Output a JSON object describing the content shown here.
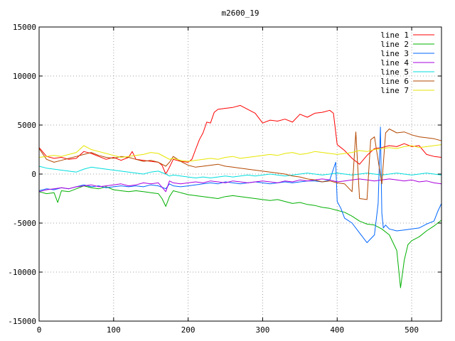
{
  "chart_data": {
    "type": "line",
    "title": "m2600_19",
    "xlabel": "",
    "ylabel": "",
    "xlim": [
      0,
      540
    ],
    "ylim": [
      -15000,
      15000
    ],
    "xticks": [
      0,
      100,
      200,
      300,
      400,
      500
    ],
    "yticks": [
      -15000,
      -10000,
      -5000,
      0,
      5000,
      10000,
      15000
    ],
    "grid": true,
    "legend_position": "top-right",
    "series": [
      {
        "name": "line 1",
        "color": "#ff0000",
        "x": [
          0,
          10,
          20,
          30,
          40,
          50,
          60,
          70,
          80,
          90,
          100,
          110,
          120,
          125,
          130,
          140,
          150,
          160,
          165,
          170,
          175,
          180,
          190,
          200,
          205,
          210,
          215,
          220,
          225,
          230,
          235,
          240,
          250,
          260,
          270,
          280,
          290,
          300,
          310,
          320,
          330,
          340,
          350,
          360,
          370,
          380,
          390,
          395,
          400,
          405,
          410,
          420,
          430,
          440,
          450,
          460,
          470,
          480,
          490,
          500,
          510,
          520,
          530,
          540
        ],
        "y": [
          2700,
          1800,
          1600,
          1700,
          1500,
          1600,
          2300,
          2100,
          1800,
          1500,
          1700,
          1400,
          1700,
          2300,
          1500,
          1400,
          1300,
          1200,
          900,
          0,
          700,
          1500,
          1300,
          1200,
          1500,
          2500,
          3500,
          4200,
          5300,
          5200,
          6300,
          6600,
          6700,
          6800,
          7000,
          6600,
          6200,
          5200,
          5500,
          5400,
          5600,
          5300,
          6100,
          5800,
          6200,
          6300,
          6500,
          6200,
          3000,
          2700,
          2400,
          1600,
          1000,
          1900,
          2600,
          2700,
          2900,
          2800,
          3100,
          2800,
          2900,
          2000,
          1800,
          1700
        ]
      },
      {
        "name": "line 2",
        "color": "#00b000",
        "x": [
          0,
          10,
          20,
          25,
          30,
          40,
          50,
          60,
          70,
          80,
          90,
          100,
          110,
          120,
          130,
          140,
          150,
          160,
          165,
          170,
          175,
          180,
          190,
          200,
          210,
          220,
          230,
          240,
          250,
          260,
          270,
          280,
          290,
          300,
          310,
          320,
          330,
          340,
          350,
          360,
          370,
          380,
          390,
          400,
          410,
          420,
          430,
          440,
          450,
          460,
          470,
          480,
          485,
          490,
          495,
          500,
          510,
          520,
          530,
          540
        ],
        "y": [
          -1800,
          -2000,
          -1900,
          -2900,
          -1700,
          -1800,
          -1500,
          -1200,
          -1400,
          -1500,
          -1300,
          -1600,
          -1700,
          -1800,
          -1700,
          -1800,
          -1900,
          -2000,
          -2500,
          -3300,
          -2300,
          -1700,
          -1900,
          -2100,
          -2200,
          -2300,
          -2400,
          -2500,
          -2300,
          -2200,
          -2300,
          -2400,
          -2500,
          -2600,
          -2700,
          -2600,
          -2800,
          -3000,
          -2900,
          -3100,
          -3200,
          -3400,
          -3500,
          -3700,
          -3900,
          -4300,
          -4800,
          -5100,
          -5200,
          -5600,
          -6200,
          -7800,
          -11600,
          -8800,
          -7200,
          -6800,
          -6400,
          -5800,
          -5300,
          -4700
        ]
      },
      {
        "name": "line 3",
        "color": "#0066ff",
        "x": [
          0,
          10,
          20,
          30,
          40,
          50,
          60,
          70,
          80,
          90,
          100,
          110,
          120,
          130,
          140,
          150,
          160,
          170,
          175,
          180,
          190,
          200,
          210,
          220,
          230,
          240,
          250,
          260,
          270,
          280,
          290,
          300,
          310,
          320,
          330,
          340,
          350,
          360,
          370,
          380,
          390,
          398,
          400,
          405,
          410,
          420,
          430,
          440,
          450,
          455,
          458,
          460,
          462,
          465,
          470,
          480,
          490,
          500,
          510,
          520,
          530,
          535,
          540
        ],
        "y": [
          -1700,
          -1500,
          -1600,
          -1400,
          -1500,
          -1300,
          -1100,
          -1300,
          -1200,
          -1400,
          -1300,
          -1200,
          -1300,
          -1200,
          -1300,
          -1100,
          -1200,
          -1500,
          -1000,
          -1200,
          -1300,
          -1200,
          -1100,
          -1000,
          -900,
          -1000,
          -800,
          -900,
          -1000,
          -900,
          -800,
          -900,
          -1000,
          -900,
          -800,
          -900,
          -800,
          -700,
          -700,
          -800,
          -600,
          1200,
          -2800,
          -3500,
          -4500,
          -5000,
          -6000,
          -7000,
          -6200,
          -3000,
          4800,
          -4000,
          -5500,
          -5200,
          -5600,
          -5800,
          -5700,
          -5600,
          -5500,
          -5100,
          -4800,
          -3800,
          -3000
        ]
      },
      {
        "name": "line 4",
        "color": "#aa00dd",
        "x": [
          0,
          10,
          20,
          30,
          40,
          50,
          60,
          70,
          80,
          90,
          100,
          110,
          120,
          130,
          140,
          150,
          160,
          170,
          175,
          180,
          190,
          200,
          210,
          220,
          230,
          240,
          250,
          260,
          270,
          280,
          290,
          300,
          310,
          320,
          330,
          340,
          350,
          360,
          370,
          380,
          390,
          400,
          410,
          420,
          430,
          440,
          450,
          460,
          470,
          480,
          490,
          500,
          510,
          520,
          530,
          540
        ],
        "y": [
          -1800,
          -1600,
          -1500,
          -1400,
          -1500,
          -1300,
          -1200,
          -1100,
          -1300,
          -1200,
          -1100,
          -1000,
          -1200,
          -1100,
          -900,
          -1000,
          -900,
          -1800,
          -700,
          -900,
          -1000,
          -900,
          -800,
          -900,
          -700,
          -800,
          -900,
          -700,
          -800,
          -900,
          -800,
          -700,
          -800,
          -900,
          -700,
          -800,
          -600,
          -700,
          -600,
          -500,
          -600,
          -800,
          -700,
          -600,
          -500,
          -600,
          -700,
          -600,
          -500,
          -600,
          -700,
          -600,
          -800,
          -700,
          -900,
          -1000
        ]
      },
      {
        "name": "line 5",
        "color": "#00dddd",
        "x": [
          0,
          10,
          20,
          30,
          40,
          50,
          60,
          70,
          80,
          90,
          100,
          110,
          120,
          130,
          140,
          150,
          160,
          170,
          175,
          180,
          190,
          200,
          210,
          220,
          230,
          240,
          250,
          260,
          270,
          280,
          290,
          300,
          310,
          320,
          330,
          340,
          350,
          360,
          370,
          380,
          390,
          400,
          410,
          420,
          430,
          440,
          450,
          460,
          470,
          480,
          490,
          500,
          510,
          520,
          530,
          540
        ],
        "y": [
          800,
          600,
          500,
          400,
          300,
          200,
          500,
          700,
          600,
          500,
          400,
          300,
          200,
          100,
          0,
          200,
          300,
          0,
          -200,
          -100,
          -200,
          -300,
          -400,
          -300,
          -400,
          -300,
          -200,
          -300,
          -200,
          -100,
          -200,
          -100,
          0,
          -100,
          -200,
          -100,
          0,
          100,
          0,
          -100,
          0,
          100,
          0,
          -100,
          0,
          100,
          0,
          -100,
          0,
          100,
          0,
          -100,
          0,
          100,
          0,
          -100
        ]
      },
      {
        "name": "line 6",
        "color": "#b34700",
        "x": [
          0,
          10,
          20,
          30,
          40,
          50,
          60,
          70,
          80,
          90,
          100,
          110,
          120,
          130,
          140,
          150,
          160,
          170,
          175,
          180,
          190,
          200,
          210,
          220,
          230,
          240,
          250,
          260,
          270,
          280,
          290,
          300,
          310,
          320,
          330,
          340,
          350,
          360,
          370,
          380,
          390,
          400,
          410,
          420,
          425,
          430,
          440,
          445,
          450,
          460,
          465,
          470,
          480,
          490,
          500,
          510,
          520,
          530,
          540
        ],
        "y": [
          2600,
          1500,
          1200,
          1400,
          1600,
          1800,
          2000,
          2200,
          1900,
          1700,
          1600,
          1800,
          1700,
          1500,
          1300,
          1400,
          1200,
          800,
          1200,
          1800,
          1300,
          900,
          700,
          800,
          900,
          1000,
          800,
          700,
          600,
          500,
          400,
          300,
          200,
          100,
          0,
          -200,
          -300,
          -500,
          -600,
          -800,
          -700,
          -900,
          -1000,
          -1800,
          4300,
          -2500,
          -2600,
          3500,
          3800,
          -1000,
          4200,
          4600,
          4200,
          4300,
          4000,
          3800,
          3700,
          3600,
          3400
        ]
      },
      {
        "name": "line 7",
        "color": "#e6e600",
        "x": [
          0,
          10,
          20,
          30,
          40,
          50,
          60,
          70,
          80,
          90,
          100,
          110,
          120,
          130,
          140,
          150,
          160,
          170,
          175,
          180,
          190,
          200,
          210,
          220,
          230,
          240,
          250,
          260,
          270,
          280,
          290,
          300,
          310,
          320,
          330,
          340,
          350,
          360,
          370,
          380,
          390,
          400,
          410,
          420,
          430,
          440,
          450,
          460,
          470,
          480,
          490,
          500,
          510,
          520,
          530,
          540
        ],
        "y": [
          1700,
          1800,
          1900,
          1800,
          2000,
          2200,
          2900,
          2500,
          2300,
          2100,
          1900,
          1700,
          1800,
          1900,
          2000,
          2200,
          2100,
          1700,
          1500,
          1600,
          1400,
          1300,
          1400,
          1500,
          1600,
          1500,
          1700,
          1800,
          1600,
          1700,
          1800,
          1900,
          2000,
          1900,
          2100,
          2200,
          2000,
          2100,
          2300,
          2200,
          2100,
          2000,
          2100,
          2200,
          2400,
          2300,
          2500,
          2600,
          2700,
          2600,
          2800,
          2900,
          2700,
          2800,
          2900,
          3000
        ]
      }
    ]
  }
}
